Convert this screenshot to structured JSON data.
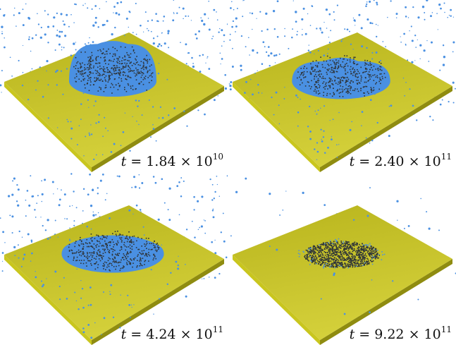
{
  "panels": [
    {
      "time": {
        "var": "t",
        "mantissa": "1.84",
        "exponent": "10"
      },
      "stage": "dome",
      "dome_height": 1.0,
      "sky_density": 1.0
    },
    {
      "time": {
        "var": "t",
        "mantissa": "2.40",
        "exponent": "11"
      },
      "stage": "spread",
      "dome_height": 0.45,
      "sky_density": 0.9
    },
    {
      "time": {
        "var": "t",
        "mantissa": "4.24",
        "exponent": "11"
      },
      "stage": "flattened",
      "dome_height": 0.25,
      "sky_density": 0.8
    },
    {
      "time": {
        "var": "t",
        "mantissa": "9.22",
        "exponent": "11"
      },
      "stage": "deposited",
      "dome_height": 0.05,
      "sky_density": 0.12
    }
  ],
  "colors": {
    "plate_top": "#b8b41c",
    "plate_top_light": "#d4d03a",
    "plate_edge_front": "#c9c61e",
    "plate_edge_side": "#8f8c10",
    "particle_blue": "#4a90e2",
    "particle_dark": "#2e3438"
  }
}
